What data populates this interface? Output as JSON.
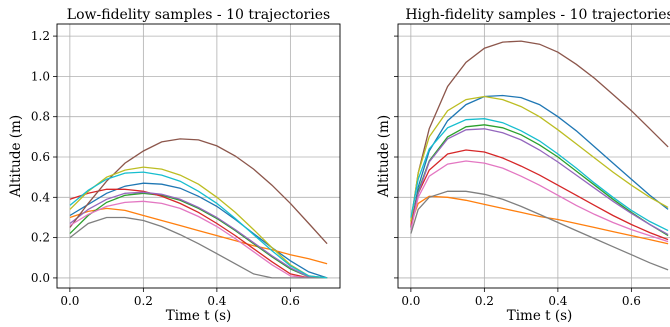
{
  "chart_data": [
    {
      "type": "line",
      "title": "Low-fidelity samples - 10 trajectories",
      "xlabel": "Time t (s)",
      "ylabel": "Altitude (m)",
      "xlim": [
        -0.035,
        0.735
      ],
      "ylim": [
        -0.05,
        1.26
      ],
      "xticks": [
        0.0,
        0.2,
        0.4,
        0.6
      ],
      "yticks": [
        0.0,
        0.2,
        0.4,
        0.6,
        0.8,
        1.0,
        1.2
      ],
      "show_ytick_labels": true,
      "grid": true,
      "series": [
        {
          "color": "#1f77b4",
          "x": [
            0,
            0.05,
            0.1,
            0.15,
            0.2,
            0.25,
            0.3,
            0.35,
            0.4,
            0.45,
            0.5,
            0.55,
            0.6,
            0.65,
            0.7
          ],
          "y": [
            0.31,
            0.365,
            0.42,
            0.455,
            0.47,
            0.465,
            0.445,
            0.405,
            0.355,
            0.29,
            0.22,
            0.15,
            0.085,
            0.03,
            0.0
          ]
        },
        {
          "color": "#ff7f0e",
          "x": [
            0,
            0.05,
            0.1,
            0.15,
            0.2,
            0.25,
            0.3,
            0.35,
            0.4,
            0.45,
            0.5,
            0.55,
            0.6,
            0.65,
            0.7
          ],
          "y": [
            0.3,
            0.33,
            0.345,
            0.335,
            0.31,
            0.285,
            0.26,
            0.235,
            0.21,
            0.185,
            0.16,
            0.14,
            0.115,
            0.095,
            0.07
          ]
        },
        {
          "color": "#2ca02c",
          "x": [
            0,
            0.05,
            0.1,
            0.15,
            0.2,
            0.25,
            0.3,
            0.35,
            0.4,
            0.45,
            0.5,
            0.55,
            0.6,
            0.65,
            0.7
          ],
          "y": [
            0.22,
            0.31,
            0.375,
            0.41,
            0.42,
            0.41,
            0.385,
            0.345,
            0.295,
            0.235,
            0.17,
            0.105,
            0.045,
            0.005,
            0.0
          ]
        },
        {
          "color": "#d62728",
          "x": [
            0,
            0.05,
            0.1,
            0.15,
            0.2,
            0.25,
            0.3,
            0.35,
            0.4,
            0.45,
            0.5,
            0.55,
            0.6,
            0.65,
            0.7
          ],
          "y": [
            0.39,
            0.42,
            0.44,
            0.44,
            0.43,
            0.405,
            0.37,
            0.325,
            0.27,
            0.21,
            0.145,
            0.08,
            0.02,
            0.0,
            0.0
          ]
        },
        {
          "color": "#9467bd",
          "x": [
            0,
            0.05,
            0.1,
            0.15,
            0.2,
            0.25,
            0.3,
            0.35,
            0.4,
            0.45,
            0.5,
            0.55,
            0.6,
            0.65,
            0.7
          ],
          "y": [
            0.27,
            0.34,
            0.39,
            0.42,
            0.425,
            0.415,
            0.39,
            0.35,
            0.3,
            0.24,
            0.175,
            0.11,
            0.05,
            0.005,
            0.0
          ]
        },
        {
          "color": "#8c564b",
          "x": [
            0,
            0.05,
            0.1,
            0.15,
            0.2,
            0.25,
            0.3,
            0.35,
            0.4,
            0.45,
            0.5,
            0.55,
            0.6,
            0.65,
            0.7
          ],
          "y": [
            0.25,
            0.37,
            0.48,
            0.57,
            0.63,
            0.675,
            0.69,
            0.685,
            0.655,
            0.605,
            0.54,
            0.46,
            0.37,
            0.27,
            0.17
          ]
        },
        {
          "color": "#e377c2",
          "x": [
            0,
            0.05,
            0.1,
            0.15,
            0.2,
            0.25,
            0.3,
            0.35,
            0.4,
            0.45,
            0.5,
            0.55,
            0.6,
            0.65,
            0.7
          ],
          "y": [
            0.26,
            0.315,
            0.355,
            0.375,
            0.38,
            0.37,
            0.345,
            0.305,
            0.255,
            0.195,
            0.13,
            0.065,
            0.01,
            0.0,
            0.0
          ]
        },
        {
          "color": "#7f7f7f",
          "x": [
            0,
            0.05,
            0.1,
            0.15,
            0.2,
            0.25,
            0.3,
            0.35,
            0.4,
            0.45,
            0.5,
            0.55,
            0.6,
            0.65,
            0.7
          ],
          "y": [
            0.2,
            0.27,
            0.3,
            0.3,
            0.285,
            0.255,
            0.215,
            0.17,
            0.12,
            0.07,
            0.02,
            0.0,
            0.0,
            0.0,
            0.0
          ]
        },
        {
          "color": "#bcbd22",
          "x": [
            0,
            0.05,
            0.1,
            0.15,
            0.2,
            0.25,
            0.3,
            0.35,
            0.4,
            0.45,
            0.5,
            0.55,
            0.6,
            0.65,
            0.7
          ],
          "y": [
            0.34,
            0.43,
            0.5,
            0.535,
            0.55,
            0.54,
            0.51,
            0.465,
            0.4,
            0.325,
            0.24,
            0.15,
            0.065,
            0.01,
            0.0
          ]
        },
        {
          "color": "#17becf",
          "x": [
            0,
            0.05,
            0.1,
            0.15,
            0.2,
            0.25,
            0.3,
            0.35,
            0.4,
            0.45,
            0.5,
            0.55,
            0.6,
            0.65,
            0.7
          ],
          "y": [
            0.36,
            0.435,
            0.49,
            0.52,
            0.525,
            0.51,
            0.48,
            0.43,
            0.37,
            0.295,
            0.215,
            0.135,
            0.06,
            0.01,
            0.0
          ]
        }
      ]
    },
    {
      "type": "line",
      "title": "High-fidelity samples - 10 trajectories",
      "xlabel": "Time t (s)",
      "ylabel": "Altitude (m)",
      "xlim": [
        -0.035,
        0.735
      ],
      "ylim": [
        -0.05,
        1.26
      ],
      "xticks": [
        0.0,
        0.2,
        0.4,
        0.6
      ],
      "yticks": [
        0.0,
        0.2,
        0.4,
        0.6,
        0.8,
        1.0,
        1.2
      ],
      "show_ytick_labels": false,
      "grid": true,
      "series": [
        {
          "color": "#1f77b4",
          "x": [
            0,
            0.02,
            0.05,
            0.1,
            0.15,
            0.2,
            0.25,
            0.3,
            0.35,
            0.4,
            0.45,
            0.5,
            0.55,
            0.6,
            0.65,
            0.7
          ],
          "y": [
            0.25,
            0.45,
            0.63,
            0.78,
            0.86,
            0.9,
            0.905,
            0.895,
            0.86,
            0.8,
            0.73,
            0.65,
            0.57,
            0.49,
            0.41,
            0.34
          ]
        },
        {
          "color": "#ff7f0e",
          "x": [
            0,
            0.02,
            0.05,
            0.1,
            0.15,
            0.2,
            0.25,
            0.3,
            0.35,
            0.4,
            0.45,
            0.5,
            0.55,
            0.6,
            0.65,
            0.7
          ],
          "y": [
            0.27,
            0.37,
            0.405,
            0.4,
            0.385,
            0.365,
            0.345,
            0.325,
            0.305,
            0.29,
            0.27,
            0.25,
            0.23,
            0.21,
            0.19,
            0.17
          ]
        },
        {
          "color": "#2ca02c",
          "x": [
            0,
            0.02,
            0.05,
            0.1,
            0.15,
            0.2,
            0.25,
            0.3,
            0.35,
            0.4,
            0.45,
            0.5,
            0.55,
            0.6,
            0.65,
            0.7
          ],
          "y": [
            0.25,
            0.43,
            0.58,
            0.7,
            0.75,
            0.76,
            0.745,
            0.71,
            0.66,
            0.6,
            0.53,
            0.46,
            0.39,
            0.325,
            0.265,
            0.21
          ]
        },
        {
          "color": "#d62728",
          "x": [
            0,
            0.02,
            0.05,
            0.1,
            0.15,
            0.2,
            0.25,
            0.3,
            0.35,
            0.4,
            0.45,
            0.5,
            0.55,
            0.6,
            0.65,
            0.7
          ],
          "y": [
            0.26,
            0.42,
            0.535,
            0.615,
            0.635,
            0.625,
            0.595,
            0.555,
            0.51,
            0.46,
            0.41,
            0.36,
            0.31,
            0.265,
            0.225,
            0.19
          ]
        },
        {
          "color": "#9467bd",
          "x": [
            0,
            0.02,
            0.05,
            0.1,
            0.15,
            0.2,
            0.25,
            0.3,
            0.35,
            0.4,
            0.45,
            0.5,
            0.55,
            0.6,
            0.65,
            0.7
          ],
          "y": [
            0.24,
            0.42,
            0.575,
            0.69,
            0.735,
            0.74,
            0.72,
            0.685,
            0.635,
            0.575,
            0.51,
            0.445,
            0.38,
            0.32,
            0.265,
            0.215
          ]
        },
        {
          "color": "#8c564b",
          "x": [
            0,
            0.02,
            0.05,
            0.1,
            0.15,
            0.2,
            0.25,
            0.3,
            0.35,
            0.4,
            0.45,
            0.5,
            0.55,
            0.6,
            0.65,
            0.7
          ],
          "y": [
            0.28,
            0.52,
            0.74,
            0.95,
            1.07,
            1.14,
            1.17,
            1.175,
            1.16,
            1.12,
            1.06,
            0.99,
            0.91,
            0.83,
            0.74,
            0.65
          ]
        },
        {
          "color": "#e377c2",
          "x": [
            0,
            0.02,
            0.05,
            0.1,
            0.15,
            0.2,
            0.25,
            0.3,
            0.35,
            0.4,
            0.45,
            0.5,
            0.55,
            0.6,
            0.65,
            0.7
          ],
          "y": [
            0.24,
            0.4,
            0.505,
            0.565,
            0.58,
            0.57,
            0.545,
            0.505,
            0.46,
            0.41,
            0.36,
            0.315,
            0.275,
            0.24,
            0.21,
            0.18
          ]
        },
        {
          "color": "#7f7f7f",
          "x": [
            0,
            0.02,
            0.05,
            0.1,
            0.15,
            0.2,
            0.25,
            0.3,
            0.35,
            0.4,
            0.45,
            0.5,
            0.55,
            0.6,
            0.65,
            0.7
          ],
          "y": [
            0.22,
            0.34,
            0.4,
            0.43,
            0.43,
            0.415,
            0.39,
            0.355,
            0.315,
            0.275,
            0.235,
            0.195,
            0.155,
            0.115,
            0.075,
            0.04
          ]
        },
        {
          "color": "#bcbd22",
          "x": [
            0,
            0.02,
            0.05,
            0.1,
            0.15,
            0.2,
            0.25,
            0.3,
            0.35,
            0.4,
            0.45,
            0.5,
            0.55,
            0.6,
            0.65,
            0.7
          ],
          "y": [
            0.28,
            0.52,
            0.7,
            0.83,
            0.885,
            0.9,
            0.885,
            0.85,
            0.8,
            0.735,
            0.665,
            0.595,
            0.525,
            0.46,
            0.4,
            0.35
          ]
        },
        {
          "color": "#17becf",
          "x": [
            0,
            0.02,
            0.05,
            0.1,
            0.15,
            0.2,
            0.25,
            0.3,
            0.35,
            0.4,
            0.45,
            0.5,
            0.55,
            0.6,
            0.65,
            0.7
          ],
          "y": [
            0.3,
            0.49,
            0.64,
            0.745,
            0.785,
            0.79,
            0.77,
            0.73,
            0.68,
            0.615,
            0.545,
            0.47,
            0.4,
            0.335,
            0.28,
            0.235
          ]
        }
      ]
    }
  ]
}
